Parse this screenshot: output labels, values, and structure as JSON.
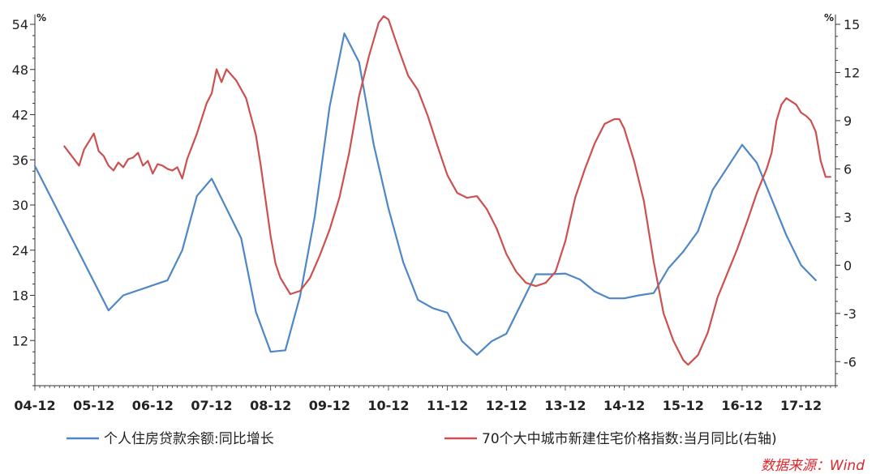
{
  "chart_data": {
    "type": "line",
    "x_ticks": [
      "04-12",
      "05-12",
      "06-12",
      "07-12",
      "08-12",
      "09-12",
      "10-12",
      "11-12",
      "12-12",
      "13-12",
      "14-12",
      "15-12",
      "16-12",
      "17-12"
    ],
    "y_left": {
      "unit": "%",
      "range": [
        6,
        54
      ],
      "ticks": [
        54,
        48,
        42,
        36,
        30,
        24,
        18,
        12
      ]
    },
    "y_right": {
      "unit": "%",
      "range": [
        -7.5,
        15
      ],
      "ticks": [
        15,
        12,
        9,
        6,
        3,
        0,
        -3,
        -6
      ]
    },
    "series": [
      {
        "name": "个人住房贷款余额:同比增长",
        "axis": "left",
        "color": "#4f86c6",
        "points": [
          [
            "2004-12",
            35.2
          ],
          [
            "2006-03",
            16.0
          ],
          [
            "2006-06",
            18.0
          ],
          [
            "2007-03",
            20.0
          ],
          [
            "2007-06",
            24.0
          ],
          [
            "2007-09",
            31.2
          ],
          [
            "2007-12",
            33.5
          ],
          [
            "2008-06",
            25.6
          ],
          [
            "2008-09",
            15.8
          ],
          [
            "2008-12",
            10.5
          ],
          [
            "2009-03",
            10.7
          ],
          [
            "2009-06",
            17.9
          ],
          [
            "2009-09",
            28.5
          ],
          [
            "2009-12",
            43.0
          ],
          [
            "2010-03",
            52.8
          ],
          [
            "2010-06",
            49.0
          ],
          [
            "2010-09",
            38.0
          ],
          [
            "2010-12",
            29.5
          ],
          [
            "2011-03",
            22.4
          ],
          [
            "2011-06",
            17.4
          ],
          [
            "2011-09",
            16.3
          ],
          [
            "2011-12",
            15.7
          ],
          [
            "2012-03",
            11.9
          ],
          [
            "2012-06",
            10.1
          ],
          [
            "2012-09",
            11.9
          ],
          [
            "2012-12",
            12.9
          ],
          [
            "2013-06",
            20.8
          ],
          [
            "2013-09",
            20.8
          ],
          [
            "2013-12",
            20.9
          ],
          [
            "2014-03",
            20.1
          ],
          [
            "2014-06",
            18.5
          ],
          [
            "2014-09",
            17.6
          ],
          [
            "2014-12",
            17.6
          ],
          [
            "2015-03",
            18.0
          ],
          [
            "2015-06",
            18.3
          ],
          [
            "2015-09",
            21.6
          ],
          [
            "2015-12",
            23.8
          ],
          [
            "2016-03",
            26.5
          ],
          [
            "2016-06",
            32.0
          ],
          [
            "2016-12",
            38.0
          ],
          [
            "2017-03",
            35.6
          ],
          [
            "2017-06",
            30.8
          ],
          [
            "2017-09",
            26.0
          ],
          [
            "2017-12",
            22.0
          ],
          [
            "2018-03",
            20.0
          ]
        ]
      },
      {
        "name": "70个大中城市新建住宅价格指数:当月同比(右轴)",
        "axis": "right",
        "color": "#cc5050",
        "points": [
          [
            "2005-06",
            7.4
          ],
          [
            "2005-09",
            6.2
          ],
          [
            "2005-10",
            7.2
          ],
          [
            "2005-12",
            8.2
          ],
          [
            "2006-01",
            7.1
          ],
          [
            "2006-02",
            6.8
          ],
          [
            "2006-03",
            6.2
          ],
          [
            "2006-04",
            5.9
          ],
          [
            "2006-05",
            6.4
          ],
          [
            "2006-06",
            6.1
          ],
          [
            "2006-07",
            6.6
          ],
          [
            "2006-08",
            6.7
          ],
          [
            "2006-09",
            7.0
          ],
          [
            "2006-10",
            6.2
          ],
          [
            "2006-11",
            6.5
          ],
          [
            "2006-12",
            5.7
          ],
          [
            "2007-01",
            6.3
          ],
          [
            "2007-02",
            6.2
          ],
          [
            "2007-03",
            6.0
          ],
          [
            "2007-04",
            5.9
          ],
          [
            "2007-05",
            6.1
          ],
          [
            "2007-06",
            5.4
          ],
          [
            "2007-07",
            6.6
          ],
          [
            "2007-09",
            8.2
          ],
          [
            "2007-11",
            10.1
          ],
          [
            "2007-12",
            10.7
          ],
          [
            "2008-01",
            12.2
          ],
          [
            "2008-02",
            11.4
          ],
          [
            "2008-03",
            12.2
          ],
          [
            "2008-05",
            11.5
          ],
          [
            "2008-07",
            10.4
          ],
          [
            "2008-09",
            8.1
          ],
          [
            "2008-10",
            6.2
          ],
          [
            "2008-12",
            1.8
          ],
          [
            "2009-01",
            0.1
          ],
          [
            "2009-02",
            -0.8
          ],
          [
            "2009-04",
            -1.8
          ],
          [
            "2009-06",
            -1.6
          ],
          [
            "2009-08",
            -0.8
          ],
          [
            "2009-10",
            0.6
          ],
          [
            "2009-12",
            2.2
          ],
          [
            "2010-02",
            4.2
          ],
          [
            "2010-04",
            7.0
          ],
          [
            "2010-06",
            10.5
          ],
          [
            "2010-08",
            13.0
          ],
          [
            "2010-10",
            15.1
          ],
          [
            "2010-11",
            15.5
          ],
          [
            "2010-12",
            15.3
          ],
          [
            "2011-02",
            13.5
          ],
          [
            "2011-04",
            11.8
          ],
          [
            "2011-06",
            10.9
          ],
          [
            "2011-08",
            9.3
          ],
          [
            "2011-10",
            7.4
          ],
          [
            "2011-12",
            5.6
          ],
          [
            "2012-02",
            4.5
          ],
          [
            "2012-04",
            4.2
          ],
          [
            "2012-06",
            4.3
          ],
          [
            "2012-08",
            3.5
          ],
          [
            "2012-10",
            2.3
          ],
          [
            "2012-12",
            0.7
          ],
          [
            "2013-02",
            -0.4
          ],
          [
            "2013-04",
            -1.1
          ],
          [
            "2013-06",
            -1.3
          ],
          [
            "2013-08",
            -1.1
          ],
          [
            "2013-10",
            -0.4
          ],
          [
            "2013-12",
            1.5
          ],
          [
            "2014-02",
            4.2
          ],
          [
            "2014-04",
            6.0
          ],
          [
            "2014-06",
            7.6
          ],
          [
            "2014-08",
            8.8
          ],
          [
            "2014-10",
            9.1
          ],
          [
            "2014-11",
            9.1
          ],
          [
            "2014-12",
            8.5
          ],
          [
            "2015-02",
            6.5
          ],
          [
            "2015-04",
            4.0
          ],
          [
            "2015-06",
            0.2
          ],
          [
            "2015-08",
            -3.0
          ],
          [
            "2015-10",
            -4.7
          ],
          [
            "2015-12",
            -5.9
          ],
          [
            "2016-01",
            -6.2
          ],
          [
            "2016-03",
            -5.6
          ],
          [
            "2016-05",
            -4.2
          ],
          [
            "2016-07",
            -2.0
          ],
          [
            "2016-09",
            -0.5
          ],
          [
            "2016-11",
            1.0
          ],
          [
            "2017-01",
            2.7
          ],
          [
            "2017-03",
            4.5
          ],
          [
            "2017-05",
            6.0
          ],
          [
            "2017-06",
            7.0
          ],
          [
            "2017-07",
            9.0
          ],
          [
            "2017-08",
            10.0
          ],
          [
            "2017-09",
            10.4
          ],
          [
            "2017-10",
            10.2
          ],
          [
            "2017-11",
            10.0
          ],
          [
            "2017-12",
            9.5
          ],
          [
            "2018-01",
            9.3
          ],
          [
            "2018-02",
            9.0
          ],
          [
            "2018-03",
            8.3
          ],
          [
            "2018-04",
            6.5
          ],
          [
            "2018-05",
            5.5
          ],
          [
            "2018-06",
            5.5
          ]
        ]
      }
    ],
    "legend_position": "bottom",
    "grid": false
  },
  "source": "数据来源：Wind"
}
